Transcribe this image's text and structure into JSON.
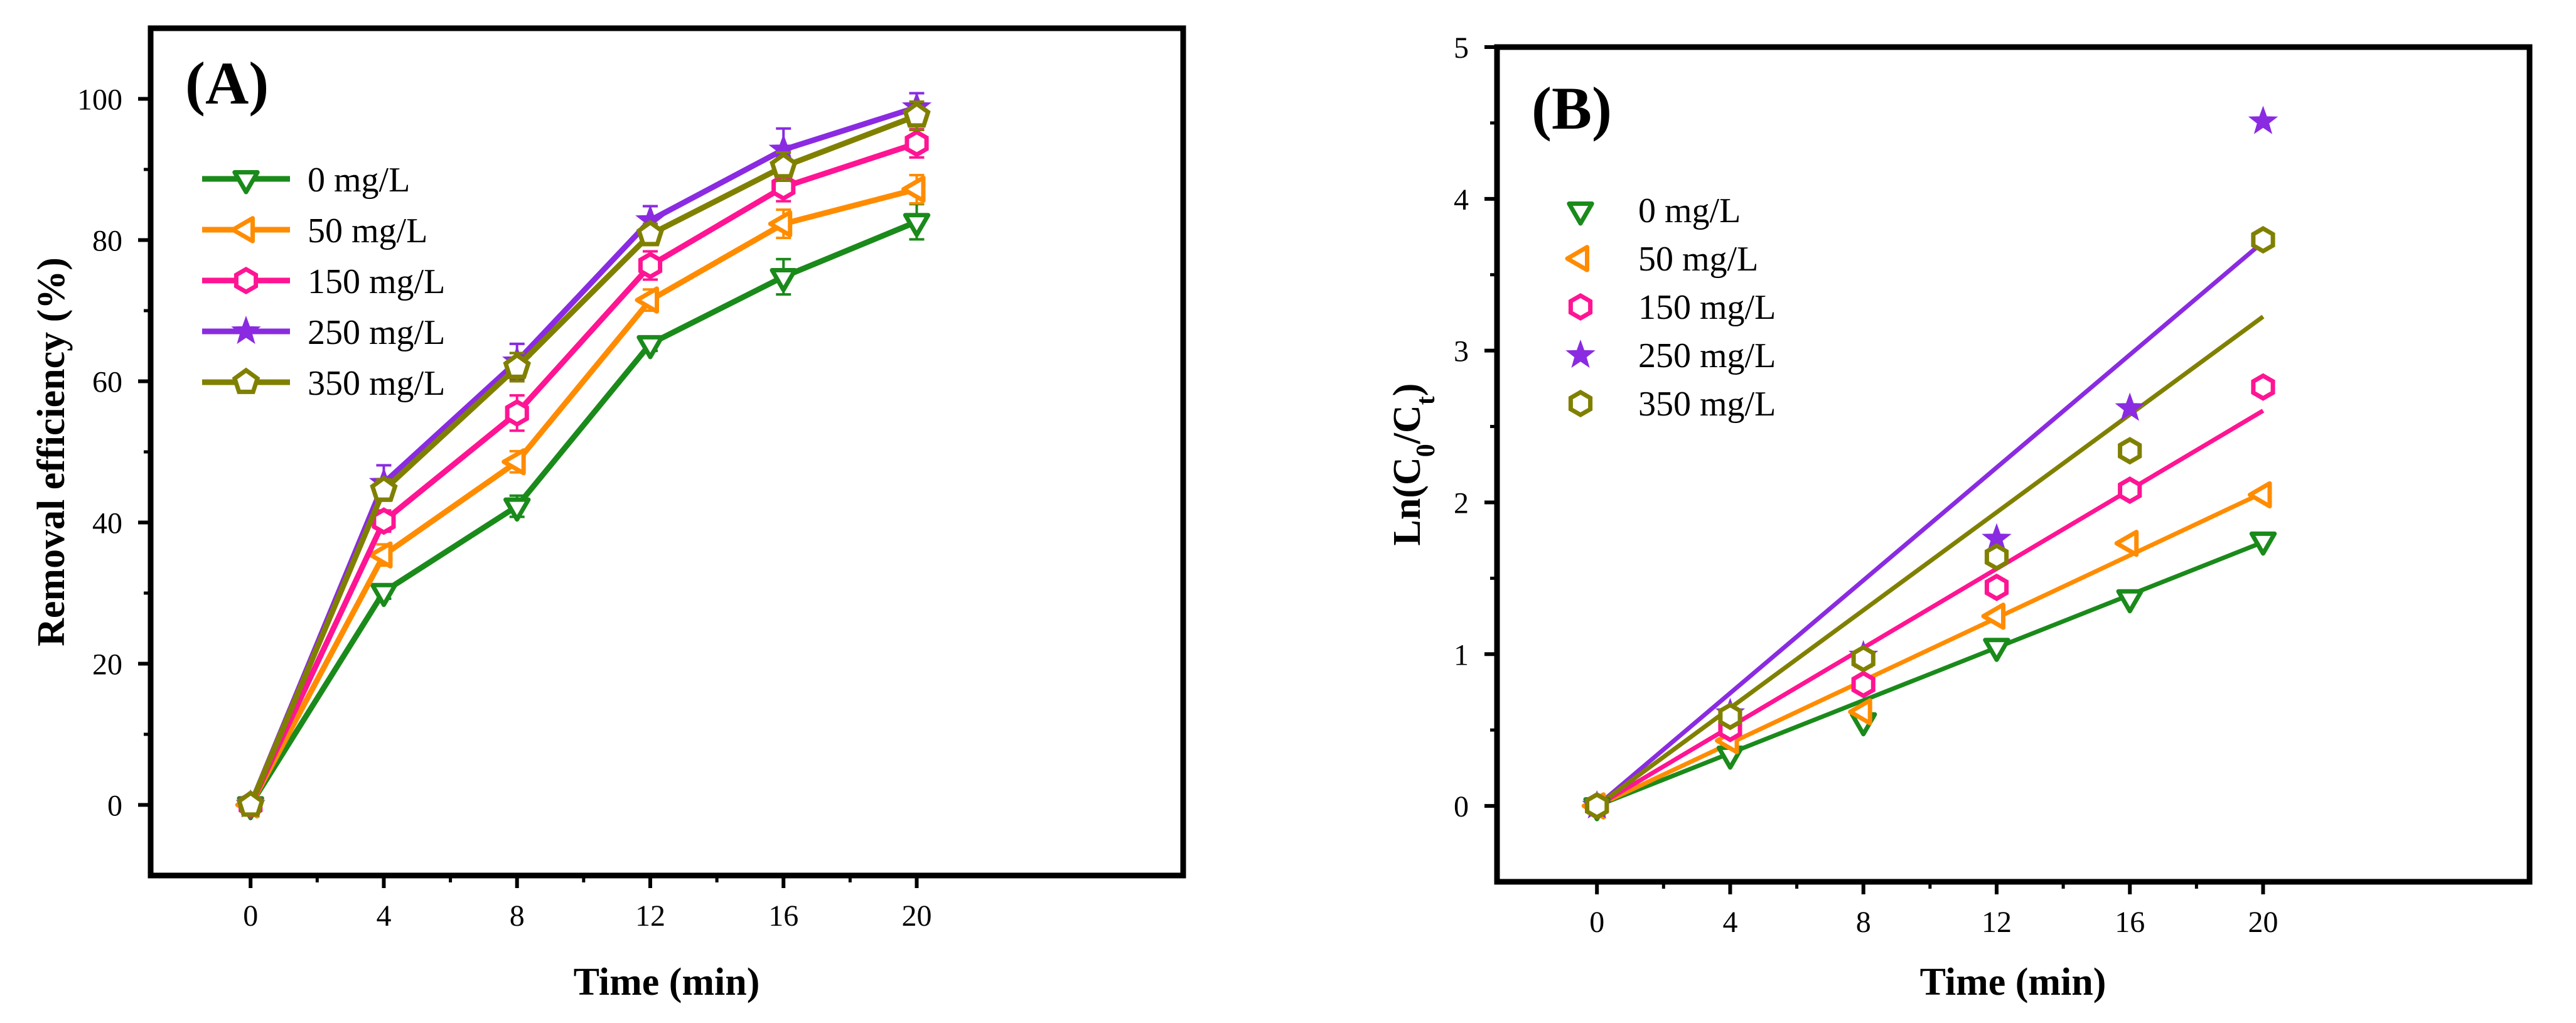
{
  "chart_data": [
    {
      "type": "line",
      "panel_label": "(A)",
      "xlabel": "Time (min)",
      "ylabel": "Removal efficiency (%)",
      "xlim": [
        -3,
        28
      ],
      "ylim": [
        -10,
        110
      ],
      "xticks": [
        0,
        4,
        8,
        12,
        16,
        20
      ],
      "yticks": [
        0,
        20,
        40,
        60,
        80,
        100
      ],
      "x": [
        0,
        4,
        8,
        12,
        16,
        20
      ],
      "legend_position": "upper-left",
      "grid": false,
      "series": [
        {
          "name": "0 mg/L",
          "color": "#1a8a1a",
          "marker": "triangle-down",
          "values": [
            0,
            30.2,
            42.3,
            65.3,
            74.8,
            82.6
          ],
          "errors": [
            1,
            1,
            1.5,
            1,
            2.5,
            2.5
          ]
        },
        {
          "name": "50 mg/L",
          "color": "#ff8c00",
          "marker": "triangle-left",
          "values": [
            0,
            35.4,
            48.6,
            71.5,
            82.3,
            87.2
          ],
          "errors": [
            1,
            1.5,
            1.5,
            1.5,
            2,
            2
          ]
        },
        {
          "name": "150 mg/L",
          "color": "#ff1493",
          "marker": "hexagon",
          "values": [
            0,
            40.2,
            55.5,
            76.4,
            87.5,
            93.7
          ],
          "errors": [
            1,
            1.5,
            2.5,
            2,
            2,
            2
          ]
        },
        {
          "name": "250 mg/L",
          "color": "#8a2be2",
          "marker": "star",
          "values": [
            0,
            45.6,
            62.8,
            82.8,
            92.8,
            98.8
          ],
          "errors": [
            1,
            2.5,
            2.5,
            2,
            3,
            2
          ]
        },
        {
          "name": "350 mg/L",
          "color": "#808000",
          "marker": "pentagon",
          "values": [
            0,
            44.6,
            62.0,
            80.8,
            90.4,
            97.6
          ],
          "errors": [
            1,
            1.5,
            2,
            1.5,
            2,
            2
          ]
        }
      ]
    },
    {
      "type": "scatter",
      "panel_label": "(B)",
      "xlabel": "Time (min)",
      "ylabel_main": "Ln(C",
      "ylabel_sub0": "0",
      "ylabel_mid": "/C",
      "ylabel_sub1": "t",
      "ylabel_end": ")",
      "xlim": [
        -3,
        28
      ],
      "ylim": [
        -0.5,
        5
      ],
      "xticks": [
        0,
        4,
        8,
        12,
        16,
        20
      ],
      "yticks": [
        0,
        1,
        2,
        3,
        4,
        5
      ],
      "x": [
        0,
        4,
        8,
        12,
        16,
        20
      ],
      "legend_position": "upper-left",
      "grid": false,
      "series": [
        {
          "name": "0 mg/L",
          "color": "#1a8a1a",
          "marker": "triangle-down",
          "values": [
            0,
            0.34,
            0.56,
            1.05,
            1.37,
            1.75
          ],
          "fit_slope": 0.0869
        },
        {
          "name": "50 mg/L",
          "color": "#ff8c00",
          "marker": "triangle-left",
          "values": [
            0,
            0.43,
            0.62,
            1.25,
            1.73,
            2.05
          ],
          "fit_slope": 0.1032
        },
        {
          "name": "150 mg/L",
          "color": "#ff1493",
          "marker": "hexagon",
          "values": [
            0,
            0.51,
            0.8,
            1.44,
            2.08,
            2.76
          ],
          "fit_slope": 0.1302
        },
        {
          "name": "250 mg/L",
          "color": "#8a2be2",
          "marker": "star",
          "values": [
            0,
            0.61,
            0.99,
            1.76,
            2.62,
            4.51
          ],
          "fit_slope": 0.1858
        },
        {
          "name": "350 mg/L",
          "color": "#808000",
          "marker": "hexagon",
          "values": [
            0,
            0.59,
            0.97,
            1.64,
            2.34,
            3.73
          ],
          "fit_slope": 0.1612
        }
      ]
    }
  ]
}
